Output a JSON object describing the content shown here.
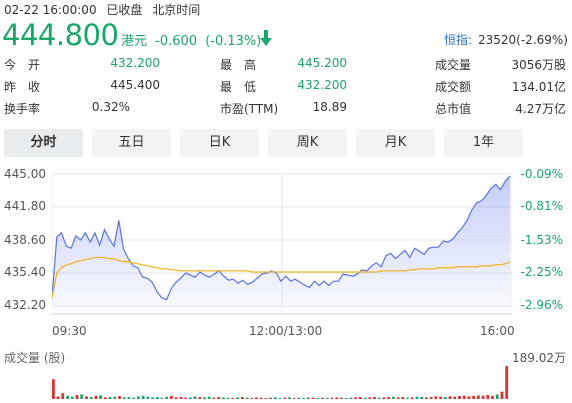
{
  "status": {
    "datetime": "02-22 16:00:00",
    "state": "已收盘",
    "tz": "北京时间"
  },
  "quote": {
    "price": "444.800",
    "currency": "港元",
    "change": "-0.600",
    "change_pct": "(-0.13%)",
    "direction_icon": "arrow-down-icon",
    "down_color": "#1aa56b"
  },
  "index": {
    "label": "恒指:",
    "value": "23520(-2.69%)"
  },
  "stats": {
    "open_label": "今　开",
    "open": "432.200",
    "high_label": "最　高",
    "high": "445.200",
    "vol_label": "成交量",
    "vol": "3056万股",
    "prev_label": "昨　收",
    "prev": "445.400",
    "low_label": "最　低",
    "low": "432.200",
    "amt_label": "成交额",
    "amt": "134.01亿",
    "turn_label": "换手率",
    "turn": "0.32%",
    "pe_label": "市盈(TTM)",
    "pe": "18.89",
    "mcap_label": "总市值",
    "mcap": "4.27万亿"
  },
  "tabs": [
    "分时",
    "五日",
    "日K",
    "周K",
    "月K",
    "1年"
  ],
  "active_tab": 0,
  "chart_data": {
    "type": "line",
    "y_ticks": [
      "445.00",
      "441.80",
      "438.60",
      "435.40",
      "432.20"
    ],
    "y_range": [
      432.2,
      445.0
    ],
    "pct_ticks": [
      "-0.09%",
      "-0.81%",
      "-1.53%",
      "-2.25%",
      "-2.96%"
    ],
    "x_ticks": [
      "09:30",
      "12:00/13:00",
      "16:00"
    ],
    "series": [
      {
        "color": "#5a72e0",
        "values": [
          433.0,
          438.9,
          439.3,
          438.0,
          437.8,
          439.0,
          438.6,
          439.3,
          438.4,
          439.3,
          438.1,
          439.6,
          438.7,
          438.0,
          440.5,
          437.7,
          436.8,
          436.1,
          435.9,
          435.0,
          434.9,
          434.5,
          433.6,
          433.0,
          432.8,
          433.9,
          434.5,
          434.9,
          435.4,
          435.2,
          435.0,
          435.5,
          435.2,
          435.0,
          435.3,
          435.6,
          435.1,
          434.7,
          434.8,
          434.4,
          434.7,
          434.3,
          434.5,
          434.9,
          435.3,
          435.4,
          435.6,
          435.4,
          434.6,
          435.1,
          434.6,
          434.8,
          434.5,
          434.2,
          434.0,
          434.6,
          434.2,
          434.6,
          434.2,
          434.6,
          434.6,
          435.3,
          435.2,
          435.1,
          435.3,
          435.7,
          435.6,
          436.1,
          436.4,
          436.0,
          437.1,
          437.3,
          436.8,
          437.2,
          437.6,
          436.9,
          437.8,
          437.5,
          437.2,
          437.8,
          437.9,
          437.9,
          438.5,
          438.4,
          438.7,
          439.3,
          439.8,
          440.5,
          441.5,
          442.2,
          442.4,
          442.9,
          443.6,
          444.0,
          443.5,
          444.3,
          444.8
        ]
      },
      {
        "color": "#f0b429",
        "values": [
          433.0,
          435.4,
          435.9,
          436.2,
          436.3,
          436.5,
          436.6,
          436.7,
          436.8,
          436.9,
          436.9,
          436.9,
          436.8,
          436.8,
          436.6,
          436.5,
          436.5,
          436.4,
          436.3,
          436.2,
          436.1,
          436.0,
          435.9,
          435.8,
          435.8,
          435.7,
          435.7,
          435.6,
          435.6,
          435.6,
          435.6,
          435.6,
          435.6,
          435.6,
          435.6,
          435.6,
          435.6,
          435.6,
          435.6,
          435.6,
          435.6,
          435.6,
          435.5,
          435.5,
          435.5,
          435.5,
          435.5,
          435.5,
          435.5,
          435.5,
          435.5,
          435.5,
          435.5,
          435.5,
          435.5,
          435.5,
          435.5,
          435.5,
          435.5,
          435.5,
          435.5,
          435.5,
          435.5,
          435.5,
          435.5,
          435.5,
          435.5,
          435.5,
          435.5,
          435.6,
          435.6,
          435.6,
          435.6,
          435.6,
          435.6,
          435.7,
          435.7,
          435.8,
          435.8,
          435.8,
          435.8,
          435.9,
          435.9,
          435.9,
          435.9,
          436.0,
          436.0,
          436.0,
          436.0,
          436.0,
          436.1,
          436.1,
          436.1,
          436.2,
          436.2,
          436.3,
          436.5
        ]
      }
    ],
    "volume": {
      "label": "成交量 (股)",
      "max_label": "189.02万",
      "up_color": "#e03131",
      "down_color": "#1aa56b",
      "values": [
        60,
        8,
        18,
        10,
        7,
        12,
        14,
        8,
        6,
        9,
        11,
        5,
        6,
        7,
        9,
        5,
        6,
        4,
        8,
        10,
        7,
        5,
        6,
        4,
        7,
        9,
        5,
        6,
        4,
        5,
        8,
        6,
        5,
        7,
        4,
        6,
        5,
        4,
        3,
        5,
        6,
        4,
        3,
        5,
        4,
        3,
        4,
        5,
        3,
        4,
        5,
        3,
        4,
        3,
        5,
        4,
        3,
        4,
        3,
        4,
        5,
        4,
        3,
        4,
        5,
        6,
        4,
        5,
        6,
        4,
        5,
        6,
        7,
        5,
        6,
        4,
        5,
        7,
        6,
        5,
        6,
        8,
        7,
        6,
        8,
        7,
        9,
        10,
        8,
        9,
        11,
        10,
        12,
        9,
        14,
        22,
        100
      ]
    }
  }
}
